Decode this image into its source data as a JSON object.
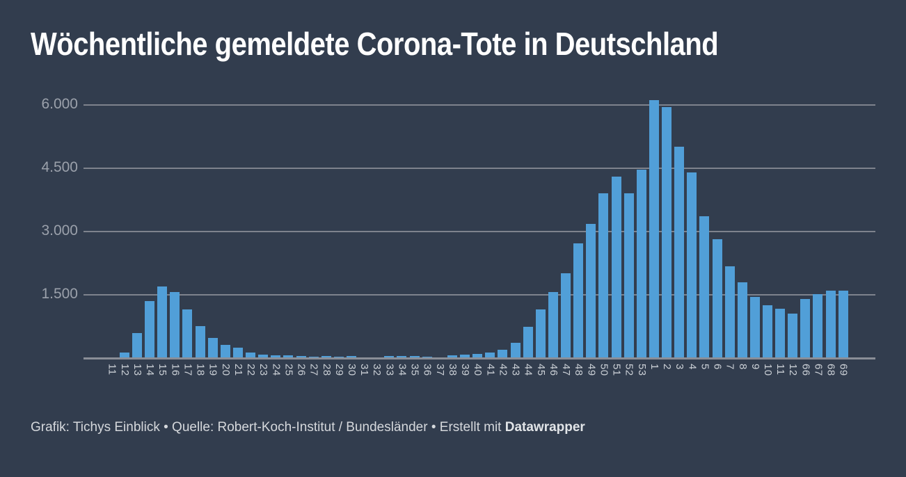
{
  "header": {
    "title": "Wöchentliche gemeldete Corona-Tote in Deutschland"
  },
  "chart_data": {
    "type": "bar",
    "title": "Wöchentliche gemeldete Corona-Tote in Deutschland",
    "xlabel": "",
    "ylabel": "",
    "ylim": [
      0,
      6200
    ],
    "grid": true,
    "legend": false,
    "yticks": [
      {
        "value": 1500,
        "label": "1.500"
      },
      {
        "value": 3000,
        "label": "3.000"
      },
      {
        "value": 4500,
        "label": "4.500"
      },
      {
        "value": 6000,
        "label": "6.000"
      }
    ],
    "categories": [
      "11",
      "12",
      "13",
      "14",
      "15",
      "16",
      "17",
      "18",
      "19",
      "20",
      "21",
      "22",
      "23",
      "24",
      "25",
      "26",
      "27",
      "28",
      "29",
      "30",
      "31",
      "32",
      "33",
      "34",
      "35",
      "36",
      "37",
      "38",
      "39",
      "40",
      "41",
      "42",
      "43",
      "44",
      "45",
      "46",
      "47",
      "48",
      "49",
      "50",
      "51",
      "52",
      "53",
      "1",
      "2",
      "3",
      "4",
      "5",
      "6",
      "7",
      "8",
      "9",
      "10",
      "11",
      "12",
      "66",
      "67",
      "68",
      "69"
    ],
    "values": [
      15,
      125,
      590,
      1350,
      1700,
      1560,
      1150,
      750,
      480,
      320,
      240,
      125,
      90,
      60,
      60,
      45,
      35,
      45,
      30,
      55,
      15,
      15,
      45,
      55,
      45,
      35,
      20,
      65,
      85,
      95,
      125,
      195,
      360,
      740,
      1160,
      1560,
      2010,
      2710,
      3170,
      3900,
      4290,
      3900,
      4460,
      6100,
      5950,
      5000,
      4400,
      3350,
      2820,
      2170,
      1800,
      1450,
      1250,
      1170,
      1050,
      1400,
      1520,
      1590,
      1590
    ],
    "colors": {
      "background": "#323D4E",
      "bar": "#519FD8",
      "gridline": "#7E838D",
      "axis_baseline": "#8A8E97",
      "y_tick_label": "#9BA1AB",
      "x_tick_label": "#CBD0D6",
      "title": "#FFFFFF"
    }
  },
  "footer": {
    "attribution_prefix": "Grafik: Tichys Einblick • Quelle: Robert-Koch-Institut / Bundesländer • Erstellt mit ",
    "brand": "Datawrapper"
  }
}
